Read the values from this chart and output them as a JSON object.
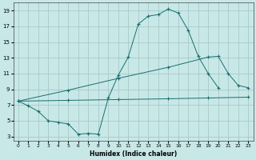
{
  "background_color": "#c8e8e8",
  "grid_color": "#a8c8c8",
  "line_color": "#1a6e6e",
  "xlabel": "Humidex (Indice chaleur)",
  "xlim": [
    -0.5,
    23.5
  ],
  "ylim": [
    2.5,
    20.0
  ],
  "xticks": [
    0,
    1,
    2,
    3,
    4,
    5,
    6,
    7,
    8,
    9,
    10,
    11,
    12,
    13,
    14,
    15,
    16,
    17,
    18,
    19,
    20,
    21,
    22,
    23
  ],
  "yticks": [
    3,
    5,
    7,
    9,
    11,
    13,
    15,
    17,
    19
  ],
  "curve_x": [
    0,
    1,
    2,
    3,
    4,
    5,
    6,
    7,
    8,
    9,
    10,
    11,
    12,
    13,
    14,
    15,
    16,
    17,
    18,
    19,
    20,
    21,
    22,
    23
  ],
  "curve_y": [
    7.5,
    6.9,
    6.2,
    5.0,
    4.8,
    4.6,
    3.3,
    3.4,
    3.3,
    7.9,
    10.8,
    13.1,
    17.3,
    18.3,
    18.5,
    19.2,
    18.7,
    16.5,
    13.2,
    11.0,
    9.2,
    null,
    null,
    null
  ],
  "flat_x": [
    0,
    5,
    10,
    15,
    19,
    23
  ],
  "flat_y": [
    7.5,
    7.6,
    7.7,
    7.8,
    7.9,
    8.0
  ],
  "slope_x": [
    0,
    5,
    10,
    15,
    19,
    20,
    21,
    22,
    23
  ],
  "slope_y": [
    7.5,
    8.9,
    10.4,
    11.8,
    13.1,
    13.2,
    11.0,
    9.5,
    9.2
  ]
}
